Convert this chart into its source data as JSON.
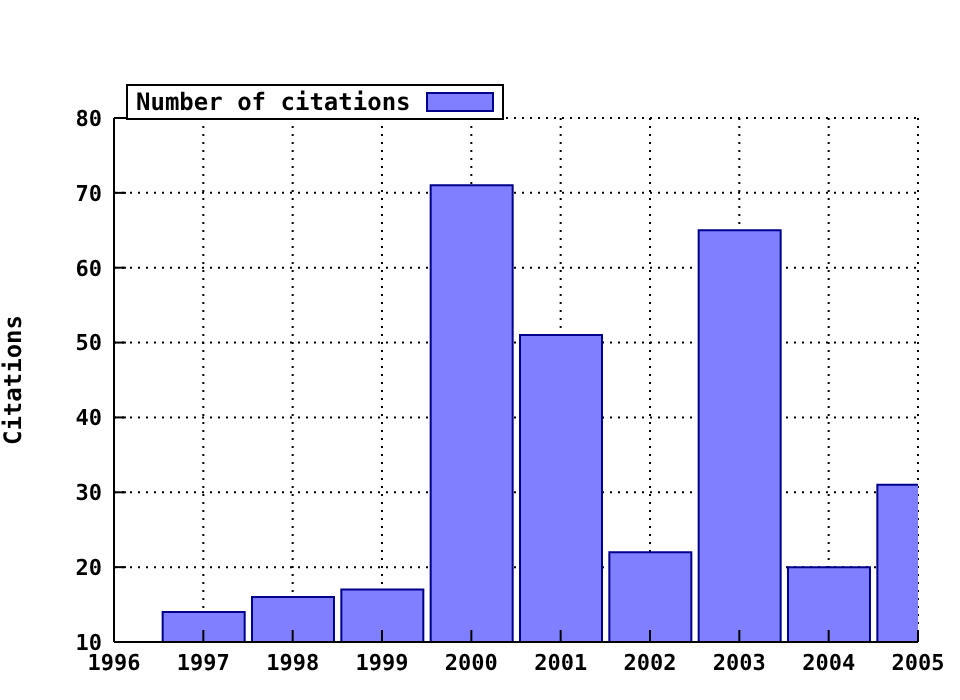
{
  "chart_data": {
    "type": "bar",
    "ylabel": "Citations",
    "x": [
      1997,
      1998,
      1999,
      2000,
      2001,
      2002,
      2003,
      2004,
      2005
    ],
    "series": [
      {
        "name": "Number of citations",
        "color": "#7f7fff",
        "values": [
          14,
          16,
          17,
          71,
          51,
          22,
          65,
          20,
          31
        ]
      }
    ],
    "xlim": [
      1996,
      2005
    ],
    "xticks": [
      1996,
      1997,
      1998,
      1999,
      2000,
      2001,
      2002,
      2003,
      2004,
      2005
    ],
    "ylim": [
      10,
      80
    ],
    "yticks": [
      10,
      20,
      30,
      40,
      50,
      60,
      70,
      80
    ],
    "grid": true,
    "legend": "top left"
  }
}
